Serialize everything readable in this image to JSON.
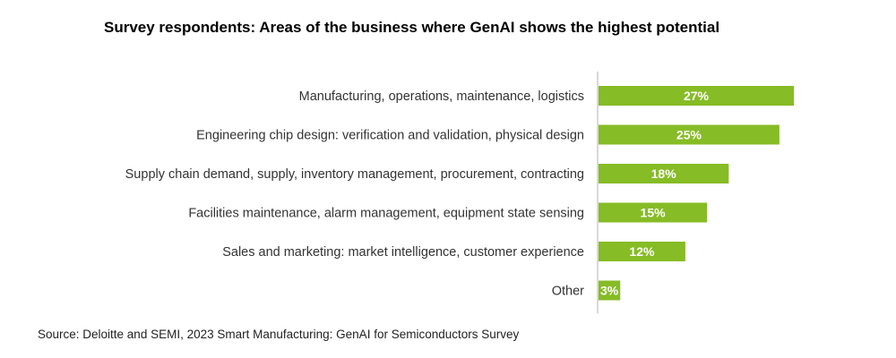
{
  "title": "Survey respondents: Areas of the business where GenAI shows the highest potential",
  "source": "Source: Deloitte and SEMI, 2023 Smart Manufacturing: GenAI for Semiconductors Survey",
  "colors": {
    "bar": "#86bc25",
    "bar_label": "#ffffff",
    "category_text": "#333333",
    "axis": "#b0b0b0"
  },
  "chart_data": {
    "type": "bar",
    "orientation": "horizontal",
    "categories": [
      "Manufacturing, operations, maintenance, logistics",
      "Engineering chip design: verification and validation, physical design",
      "Supply chain demand, supply, inventory management, procurement, contracting",
      "Facilities maintenance, alarm management, equipment state sensing",
      "Sales and marketing: market intelligence, customer experience",
      "Other"
    ],
    "values": [
      27,
      25,
      18,
      15,
      12,
      3
    ],
    "value_labels": [
      "27%",
      "25%",
      "18%",
      "15%",
      "12%",
      "3%"
    ],
    "title": "Survey respondents: Areas of the business where GenAI shows the highest potential",
    "xlabel": "",
    "ylabel": "",
    "xlim": [
      0,
      27
    ],
    "grid": false,
    "legend": "none"
  }
}
